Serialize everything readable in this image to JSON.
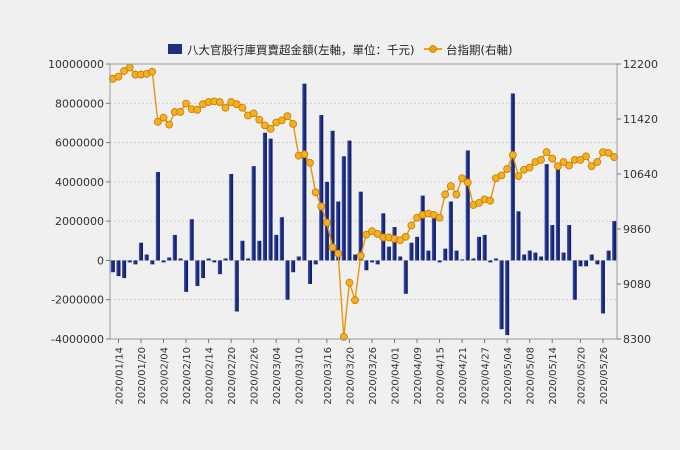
{
  "chart_data": {
    "type": "bar+line",
    "legend_position": "top",
    "grid": true,
    "series": [
      {
        "name": "八大官股行庫買賣超金額(左軸，單位：千元)",
        "type": "bar",
        "axis": "left",
        "color": "#1f2f7a",
        "values": [
          -600000,
          -800000,
          -900000,
          -100000,
          -200000,
          900000,
          300000,
          -200000,
          4500000,
          -100000,
          150000,
          1300000,
          100000,
          -1600000,
          2100000,
          -1300000,
          -900000,
          100000,
          -100000,
          -700000,
          100000,
          4400000,
          -2600000,
          1000000,
          100000,
          4800000,
          1000000,
          6500000,
          6200000,
          1300000,
          2200000,
          -2000000,
          -600000,
          200000,
          9000000,
          -1200000,
          -200000,
          7400000,
          4000000,
          6600000,
          3000000,
          5300000,
          6100000,
          300000,
          3500000,
          -500000,
          -100000,
          -200000,
          2400000,
          700000,
          1700000,
          200000,
          -1700000,
          900000,
          1200000,
          3300000,
          500000,
          2200000,
          -100000,
          600000,
          3000000,
          500000,
          50000,
          5600000,
          100000,
          1200000,
          1300000,
          -100000,
          100000,
          -3500000,
          -3800000,
          8500000,
          2500000,
          300000,
          500000,
          400000,
          200000,
          4900000,
          1800000,
          4700000,
          400000,
          1800000,
          -2000000,
          -300000,
          -300000,
          300000,
          -200000,
          -2700000,
          500000,
          2000000
        ]
      },
      {
        "name": "台指期(右軸)",
        "type": "line",
        "axis": "right",
        "color": "#f2a20f",
        "values": [
          11990,
          12020,
          12100,
          12150,
          12050,
          12050,
          12060,
          12090,
          11380,
          11440,
          11340,
          11520,
          11520,
          11640,
          11560,
          11550,
          11630,
          11660,
          11670,
          11660,
          11580,
          11660,
          11630,
          11580,
          11470,
          11500,
          11410,
          11330,
          11280,
          11370,
          11400,
          11460,
          11350,
          10900,
          10920,
          10800,
          10380,
          10180,
          9950,
          9600,
          9510,
          8330,
          9100,
          8850,
          9480,
          9780,
          9830,
          9790,
          9740,
          9740,
          9720,
          9700,
          9750,
          9910,
          10020,
          10060,
          10080,
          10060,
          10020,
          10350,
          10470,
          10350,
          10580,
          10520,
          10200,
          10230,
          10280,
          10260,
          10580,
          10620,
          10710,
          10910,
          10610,
          10700,
          10730,
          10810,
          10840,
          10950,
          10860,
          10750,
          10810,
          10760,
          10840,
          10840,
          10890,
          10750,
          10810,
          10950,
          10940,
          10880
        ]
      }
    ],
    "x_tick_labels": [
      "2020/01/14",
      "2020/01/20",
      "2020/02/04",
      "2020/02/10",
      "2020/02/14",
      "2020/02/20",
      "2020/02/26",
      "2020/03/04",
      "2020/03/10",
      "2020/03/16",
      "2020/03/20",
      "2020/03/26",
      "2020/04/01",
      "2020/04/09",
      "2020/04/15",
      "2020/04/21",
      "2020/04/27",
      "2020/05/04",
      "2020/05/08",
      "2020/05/14",
      "2020/05/20",
      "2020/05/26"
    ],
    "y_left": {
      "min": -4000000,
      "max": 10000000,
      "ticks": [
        "-4000000",
        "-2000000",
        "0",
        "2000000",
        "4000000",
        "6000000",
        "8000000",
        "10000000"
      ]
    },
    "y_right": {
      "min": 8300,
      "max": 12200,
      "ticks": [
        "8300",
        "9080",
        "9860",
        "10640",
        "11420",
        "12200"
      ]
    }
  }
}
